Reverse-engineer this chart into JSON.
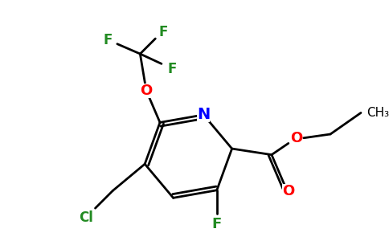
{
  "bg_color": "#ffffff",
  "atom_colors": {
    "C": "#000000",
    "N": "#0000ff",
    "O": "#ff0000",
    "F": "#228B22",
    "Cl": "#228B22"
  },
  "bond_color": "#000000",
  "bond_width": 2.0,
  "figsize": [
    4.84,
    3.0
  ],
  "dpi": 100
}
